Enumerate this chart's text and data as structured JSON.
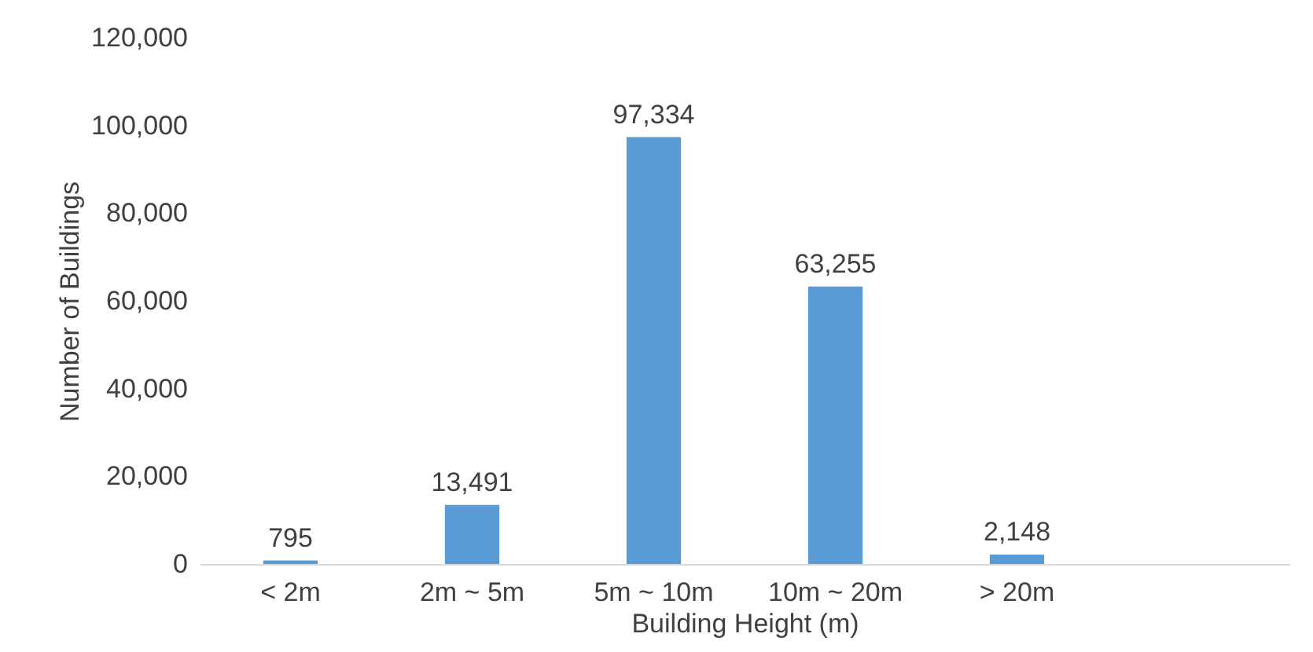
{
  "chart_data": {
    "type": "bar",
    "xlabel": "Building Height (m)",
    "ylabel": "Number of Buildings",
    "categories": [
      "< 2m",
      "2m ~ 5m",
      "5m ~ 10m",
      "10m ~ 20m",
      "> 20m",
      null
    ],
    "values": [
      795,
      13491,
      97334,
      63255,
      2148,
      null
    ],
    "value_labels": [
      "795",
      "13,491",
      "97,334",
      "63,255",
      "2,148",
      null
    ],
    "color": "#5b9bd5",
    "ylim": [
      0,
      120000
    ],
    "yticks": [
      0,
      {
        "value": 20000,
        "label": "20,000"
      },
      {
        "value": 40000,
        "label": "40,000"
      },
      {
        "value": 60000,
        "label": "60,000"
      },
      {
        "value": 80000,
        "label": "80,000"
      },
      {
        "value": 100000,
        "label": "100,000"
      },
      {
        "value": 120000,
        "label": "120,000"
      }
    ],
    "grid": false
  }
}
